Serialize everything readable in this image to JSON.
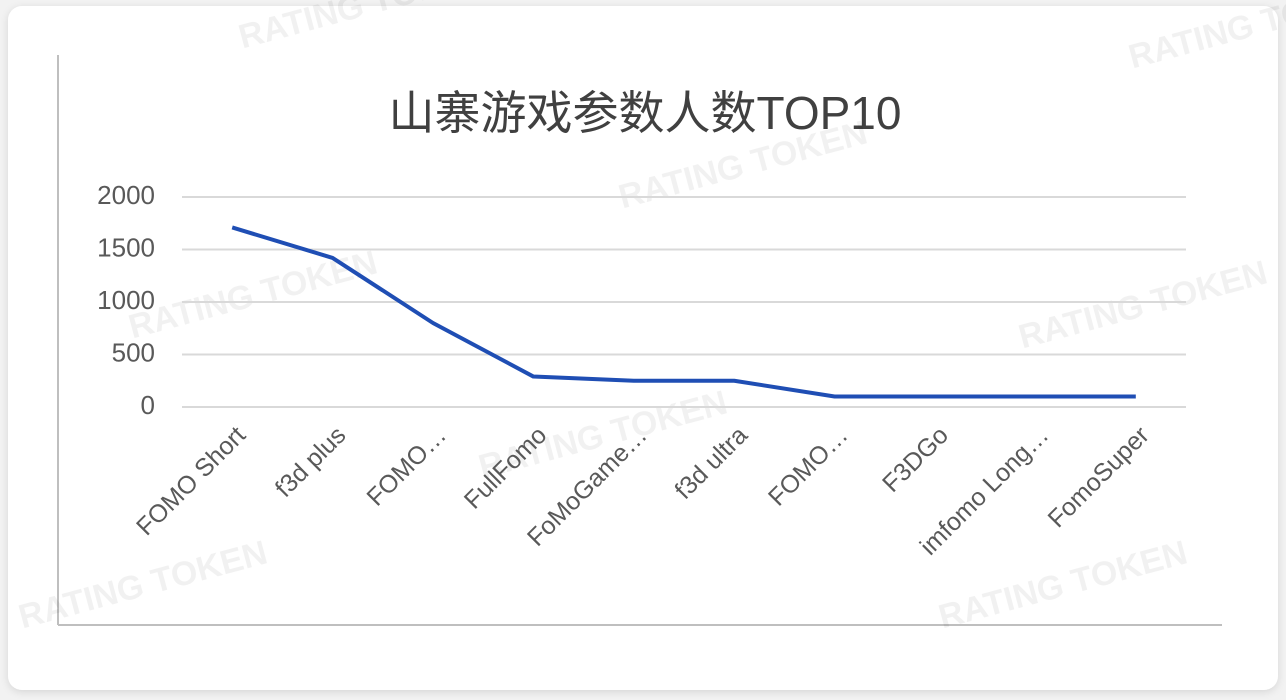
{
  "chart_data": {
    "type": "line",
    "title": "山寨游戏参数人数TOP10",
    "categories": [
      "FOMO Short",
      "f3d plus",
      "FOMO…",
      "FullFomo",
      "FoMoGame…",
      "f3d ultra",
      "FOMO…",
      "F3DGo",
      "imfomo Long…",
      "FomoSuper"
    ],
    "values": [
      1710,
      1420,
      800,
      290,
      250,
      250,
      100,
      100,
      100,
      100
    ],
    "color": "#1f4eb4",
    "ylim": [
      0,
      2000
    ],
    "yticks": [
      0,
      500,
      1000,
      1500,
      2000
    ],
    "grid": true,
    "watermark": "RATING TOKEN"
  }
}
